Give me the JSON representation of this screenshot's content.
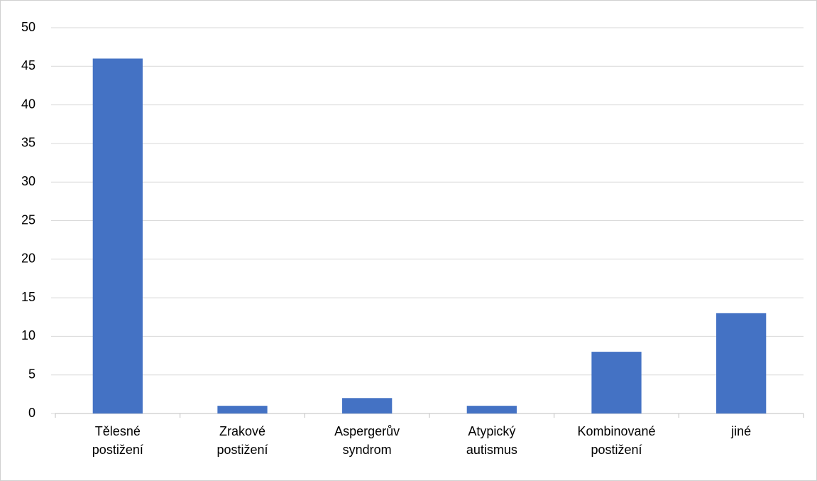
{
  "chart_data": {
    "type": "bar",
    "categories": [
      "Tělesné postižení",
      "Zrakové postižení",
      "Aspergerův syndrom",
      "Atypický autismus",
      "Kombinované postižení",
      "jiné"
    ],
    "values": [
      46,
      1,
      2,
      1,
      8,
      13
    ],
    "color": "#4472c4",
    "ylim": [
      0,
      50
    ],
    "yticks": [
      0,
      5,
      10,
      15,
      20,
      25,
      30,
      35,
      40,
      45,
      50
    ],
    "grid": true
  }
}
